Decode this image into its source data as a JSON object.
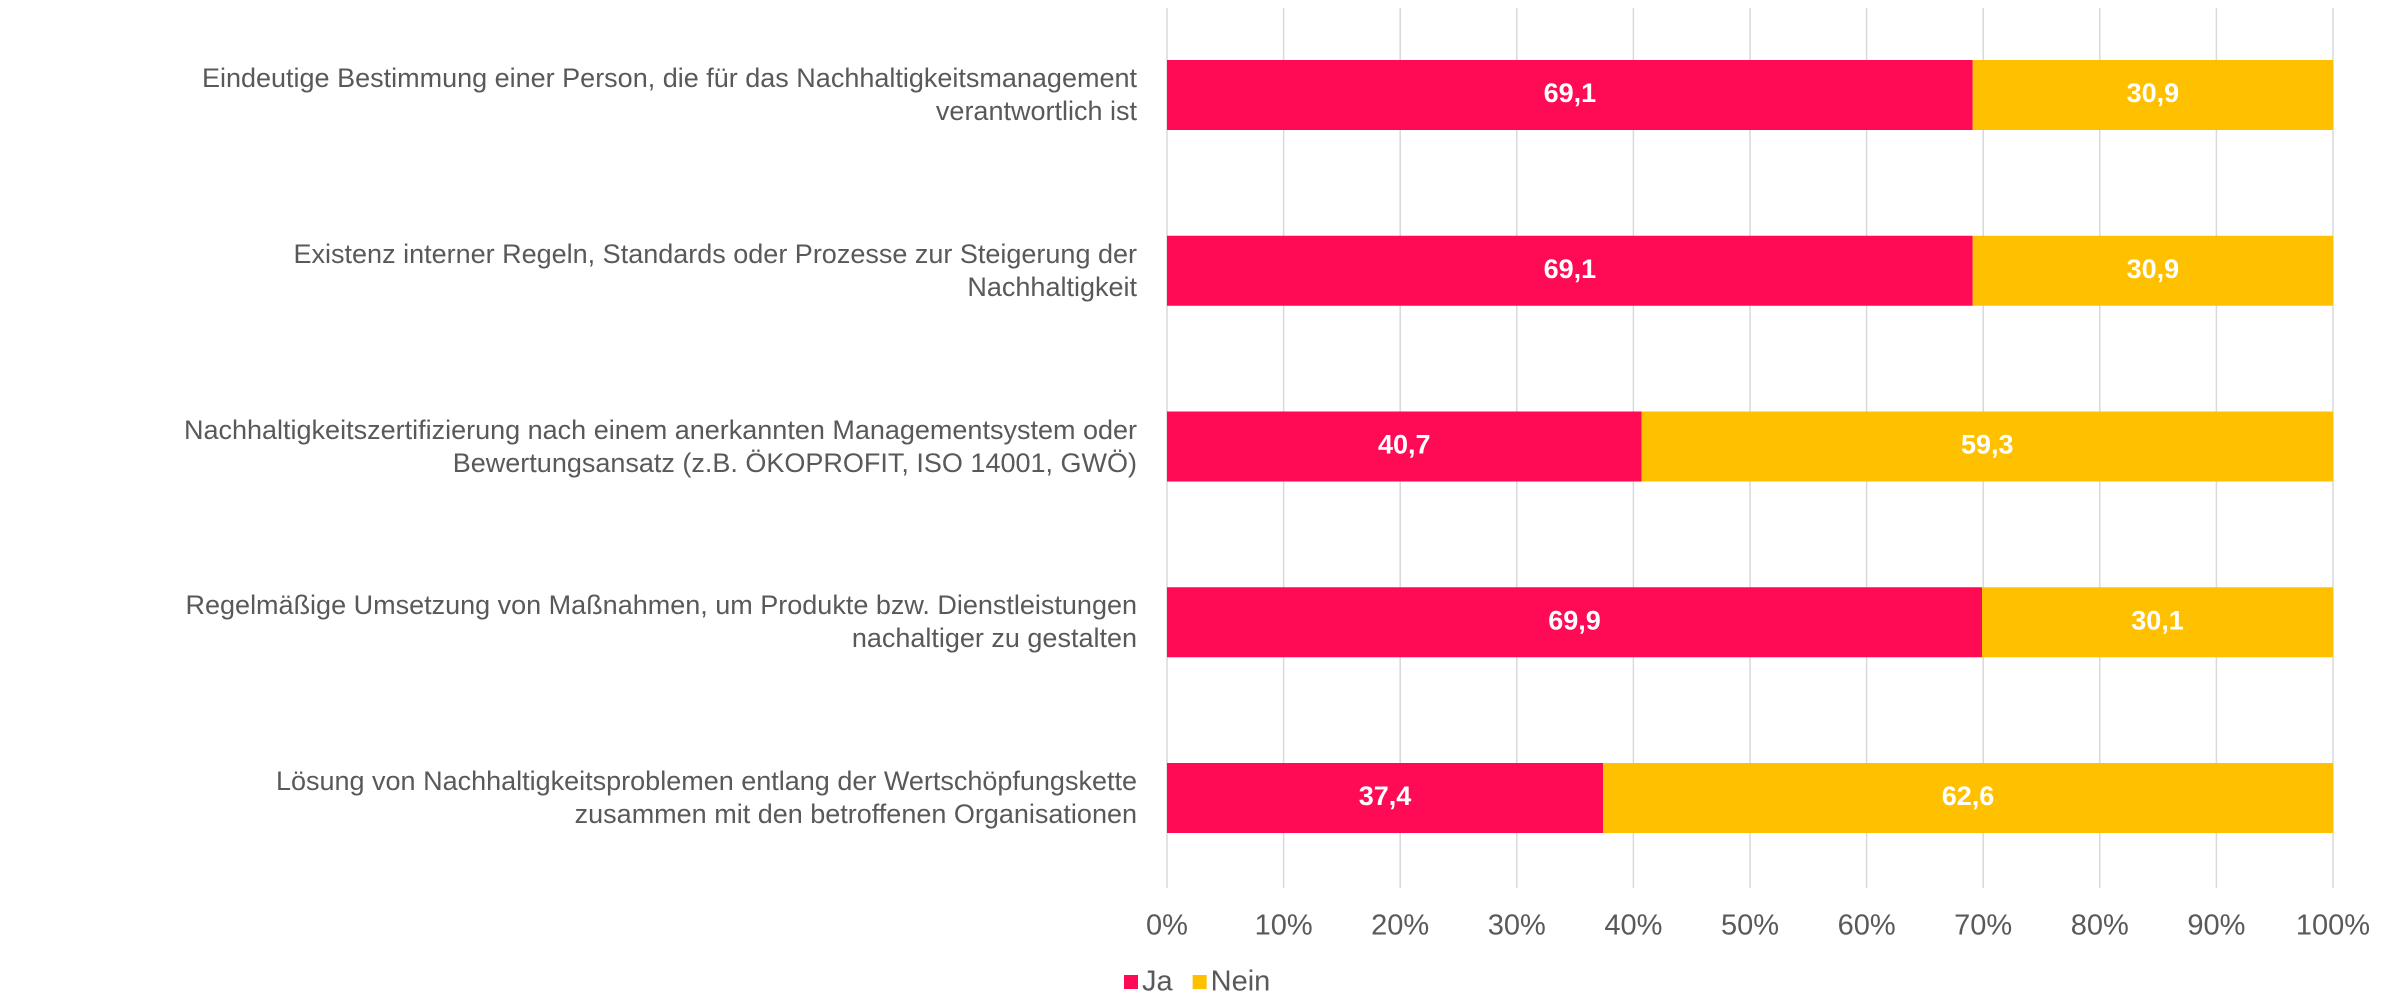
{
  "chart_data": {
    "type": "stacked_bar_horizontal",
    "categories": [
      "Eindeutige Bestimmung einer Person, die für das Nachhaltigkeitsmanagement\nverantwortlich ist",
      "Existenz interner Regeln, Standards oder Prozesse zur Steigerung der\nNachhaltigkeit",
      "Nachhaltigkeitszertifizierung nach einem anerkannten Managementsystem oder\nBewertungsansatz (z.B. ÖKOPROFIT, ISO 14001, GWÖ)",
      "Regelmäßige Umsetzung von Maßnahmen, um Produkte bzw. Dienstleistungen\nnachaltiger zu gestalten",
      "Lösung von Nachhaltigkeitsproblemen entlang der Wertschöpfungskette\nzusammen mit den betroffenen Organisationen"
    ],
    "series": [
      {
        "name": "Ja",
        "color": "#ff0a54",
        "values": [
          69.1,
          69.1,
          40.7,
          69.9,
          37.4
        ],
        "value_labels": [
          "69,1",
          "69,1",
          "40,7",
          "69,9",
          "37,4"
        ]
      },
      {
        "name": "Nein",
        "color": "#ffc000",
        "values": [
          30.9,
          30.9,
          59.3,
          30.1,
          62.6
        ],
        "value_labels": [
          "30,9",
          "30,9",
          "59,3",
          "30,1",
          "62,6"
        ]
      }
    ],
    "xlim": [
      0,
      100
    ],
    "xticks": [
      {
        "value": 0,
        "label": "0%"
      },
      {
        "value": 10,
        "label": "10%"
      },
      {
        "value": 20,
        "label": "20%"
      },
      {
        "value": 30,
        "label": "30%"
      },
      {
        "value": 40,
        "label": "40%"
      },
      {
        "value": 50,
        "label": "50%"
      },
      {
        "value": 60,
        "label": "60%"
      },
      {
        "value": 70,
        "label": "70%"
      },
      {
        "value": 80,
        "label": "80%"
      },
      {
        "value": 90,
        "label": "90%"
      },
      {
        "value": 100,
        "label": "100%"
      }
    ],
    "grid": true,
    "legend": "bottom"
  }
}
